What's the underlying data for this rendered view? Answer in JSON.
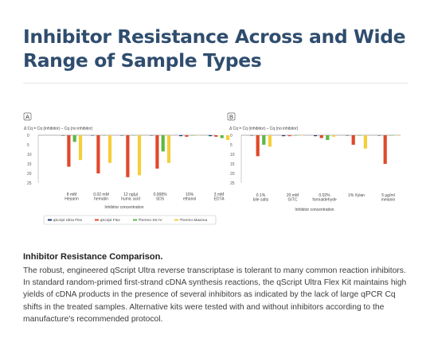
{
  "page": {
    "title": "Inhibitor Resistance Across and Wide Range of Sample Types",
    "caption_title": "Inhibitor Resistance Comparison.",
    "caption_body": "The robust, engineered qScript Ultra reverse transcriptase is tolerant to many common reaction inhibitors. In standard random-primed first-strand cDNA synthesis reactions, the qScript Ultra Flex Kit maintains high yields of cDNA products in the presence of several inhibitors as indicated by the lack of large qPCR Cq shifts in the treated samples. Alternative kits were tested with and without inhibitors according to the manufacture's recommended protocol."
  },
  "chart_data": [
    {
      "type": "bar",
      "panel": "A",
      "ylabel": "Δ Cq = Cq (inhibitor) – Cq (no inhibitor)",
      "xlabel": "Inhibitor concentration",
      "yticks": [
        "0",
        "5",
        "10",
        "15",
        "20",
        "25"
      ],
      "ylim": [
        0,
        25
      ],
      "y_inverted": true,
      "categories": [
        [
          "8 mM",
          "Heparin"
        ],
        [
          "0.02 mM",
          "hematin"
        ],
        [
          "12 ng/µl",
          "humic acid"
        ],
        [
          "0.008%",
          "SDS"
        ],
        [
          "10%",
          "ethanol"
        ],
        [
          "3 mM",
          "EDTA"
        ]
      ],
      "series": [
        {
          "name": "qScript Ultra Flex",
          "color": "#1c3d73",
          "values": [
            0.2,
            0.2,
            0.2,
            0.2,
            0.5,
            0.5
          ]
        },
        {
          "name": "qScript Flex",
          "color": "#e0492a",
          "values": [
            16.5,
            20,
            22,
            17.5,
            0.8,
            0.8
          ]
        },
        {
          "name": "Thermo SS IV",
          "color": "#5cb946",
          "values": [
            3.5,
            0.2,
            0.2,
            8.5,
            0.2,
            1.5
          ]
        },
        {
          "name": "Thermo Maxima",
          "color": "#f5cf3a",
          "values": [
            13,
            14.5,
            21,
            14.5,
            0.2,
            2.5
          ]
        }
      ]
    },
    {
      "type": "bar",
      "panel": "B",
      "ylabel": "Δ Cq = Cq (inhibitor) – Cq (no inhibitor)",
      "xlabel": "Inhibitor concentration",
      "yticks": [
        "0",
        "5",
        "10",
        "15",
        "20",
        "25"
      ],
      "ylim": [
        0,
        25
      ],
      "y_inverted": true,
      "categories": [
        [
          "0.1%",
          "bile salts"
        ],
        [
          "20 mM",
          "GITC"
        ],
        [
          "0.02%",
          "formaldehyde"
        ],
        [
          "1% Xylan",
          ""
        ],
        [
          "5 µg/ml",
          "melanin"
        ]
      ],
      "series": [
        {
          "name": "qScript Ultra Flex",
          "color": "#1c3d73",
          "values": [
            0.2,
            0.5,
            0.5,
            0.2,
            0.2
          ]
        },
        {
          "name": "qScript Flex",
          "color": "#e0492a",
          "values": [
            11,
            0.5,
            1.5,
            5,
            15
          ]
        },
        {
          "name": "Thermo SS IV",
          "color": "#5cb946",
          "values": [
            5,
            0.2,
            2.5,
            0.2,
            0.2
          ]
        },
        {
          "name": "Thermo Maxima",
          "color": "#f5cf3a",
          "values": [
            6,
            0.2,
            0.8,
            7,
            0
          ]
        }
      ]
    }
  ]
}
